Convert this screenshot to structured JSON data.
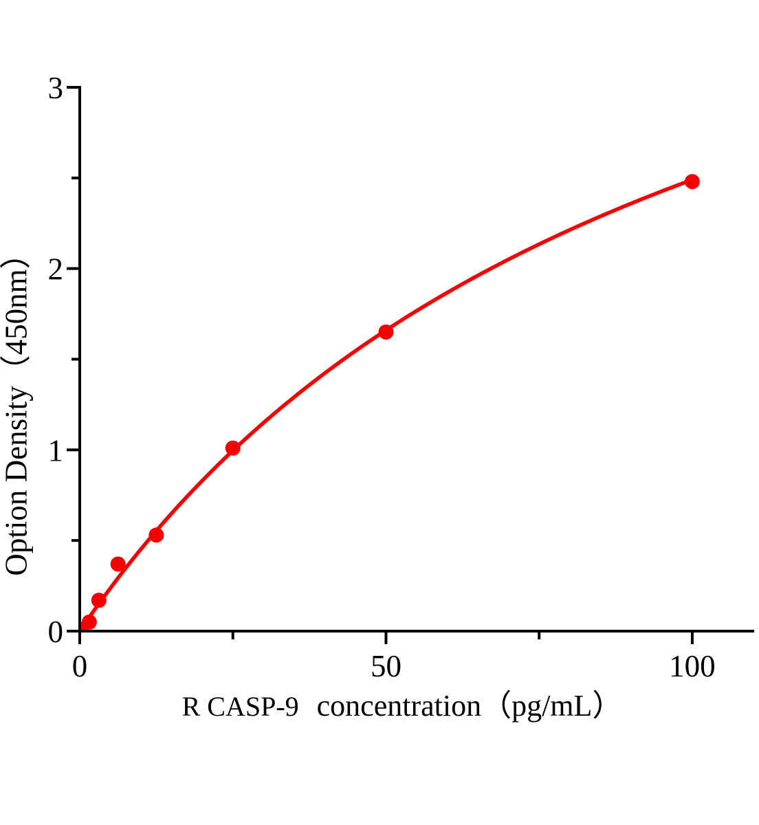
{
  "figure": {
    "background": "#ffffff",
    "accent_red": "#f90000",
    "axis_color": "#000000"
  },
  "chart_data": {
    "type": "scatter",
    "title": "",
    "xlabel": "R CASP-9  concentration（pg/mL）",
    "xlabel_parts": {
      "prefix": "R CASP-9",
      "rest": "concentration（pg/mL）"
    },
    "ylabel": "Option Density（450nm）",
    "x": [
      0,
      1.56,
      3.12,
      6.25,
      12.5,
      25,
      50,
      100
    ],
    "y": [
      0.01,
      0.05,
      0.17,
      0.37,
      0.53,
      1.01,
      1.65,
      2.48
    ],
    "xlim": [
      0,
      110
    ],
    "ylim": [
      0,
      3
    ],
    "x_major_ticks": [
      0,
      50,
      100
    ],
    "x_minor_ticks": [
      25,
      75
    ],
    "y_major_ticks": [
      0,
      1,
      2,
      3
    ],
    "y_minor_ticks": [
      0.5,
      1.5,
      2.5
    ],
    "grid": false,
    "legend": "none",
    "marker_color": "#f90000",
    "line_color": "#f90000",
    "axis_color": "#000000",
    "curve_fit": {
      "model": "y = a*x/(b+x)",
      "a": 4.98,
      "b": 100,
      "x_range": [
        0,
        100
      ]
    }
  }
}
